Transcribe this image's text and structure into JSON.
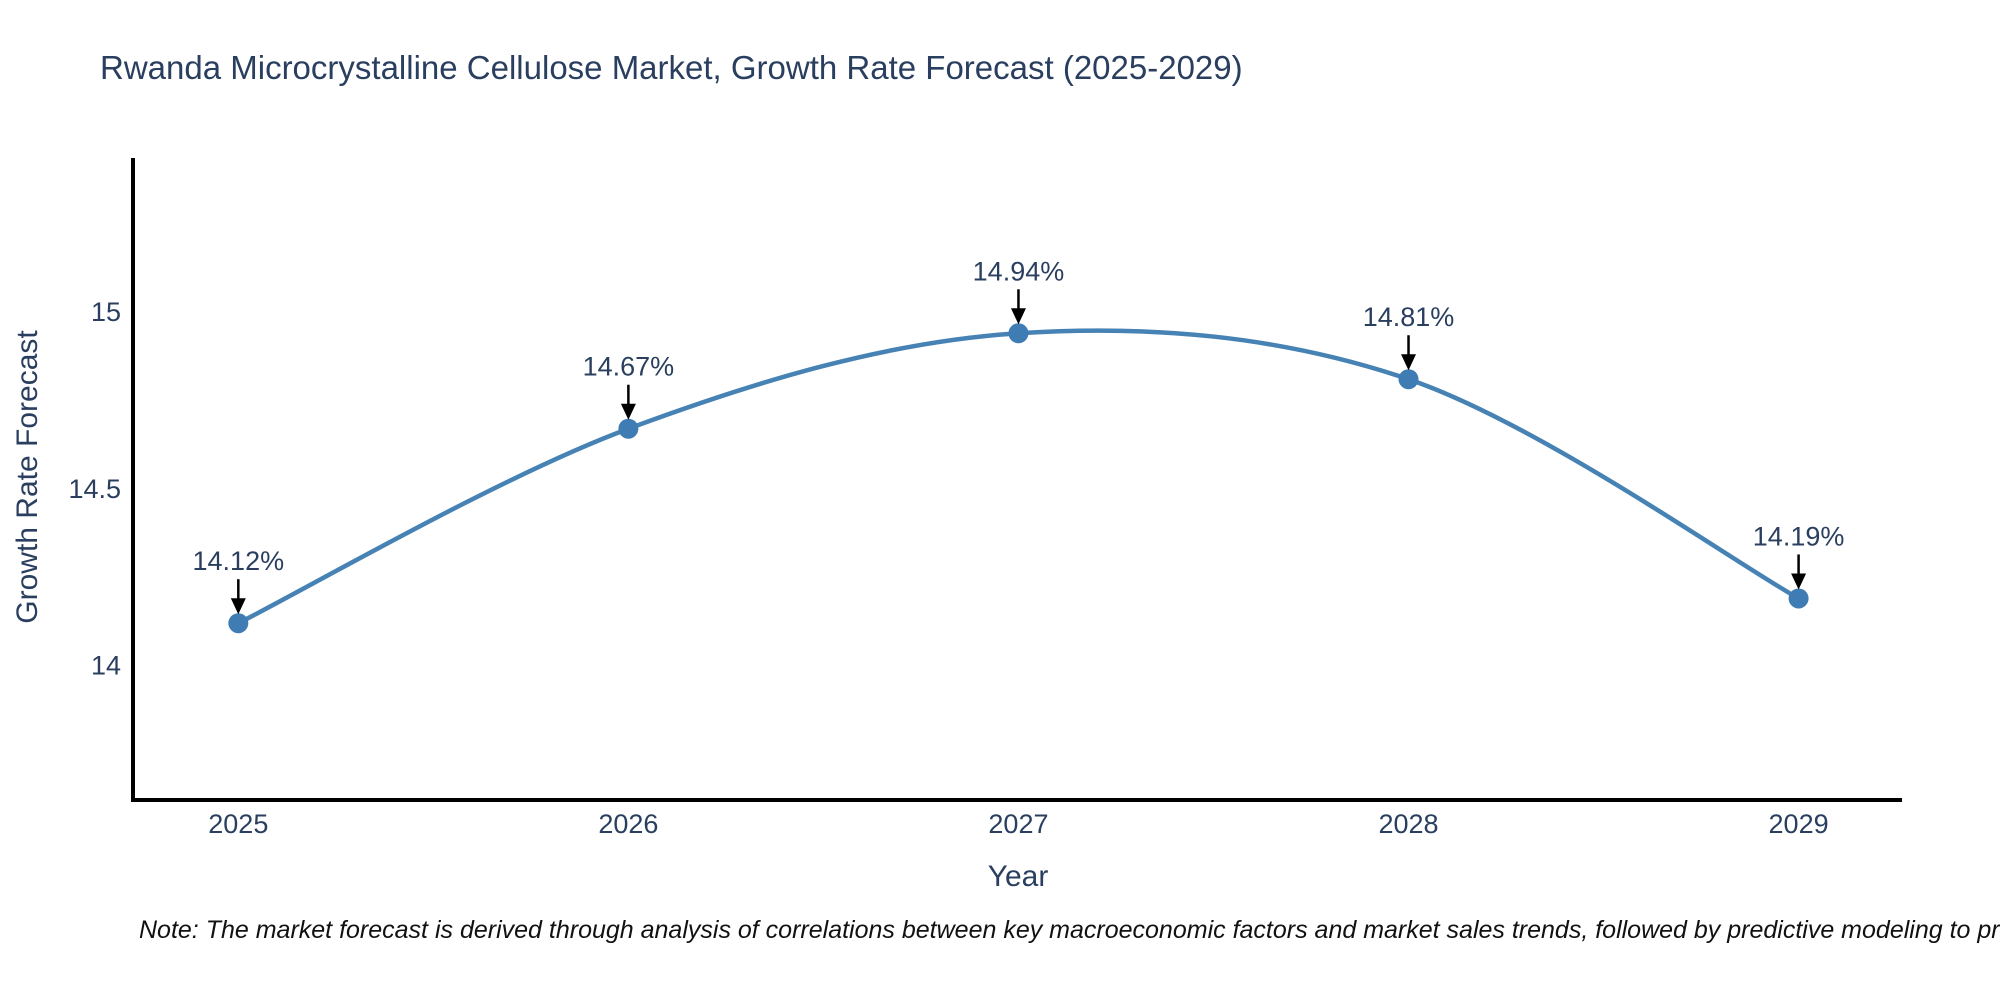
{
  "note": "Note: The market forecast is derived through analysis of correlations between key macroeconomic factors and market sales trends, followed by predictive modeling to project future sales.",
  "chart_data": {
    "type": "line",
    "title": "Rwanda Microcrystalline Cellulose Market, Growth Rate Forecast (2025-2029)",
    "xlabel": "Year",
    "ylabel": "Growth Rate Forecast",
    "x": [
      2025,
      2026,
      2027,
      2028,
      2029
    ],
    "values": [
      14.12,
      14.67,
      14.94,
      14.81,
      14.19
    ],
    "point_labels": [
      "14.12%",
      "14.67%",
      "14.94%",
      "14.81%",
      "14.19%"
    ],
    "yticks": [
      14,
      14.5,
      15
    ],
    "ytick_labels": [
      "14",
      "14.5",
      "15"
    ],
    "xlim": [
      2024.73,
      2029.26
    ],
    "ylim": [
      13.62,
      15.43
    ],
    "line_shape": "spline",
    "grid": false,
    "legend_position": "none",
    "colors": {
      "line": "#4682b4",
      "marker": "#3f7cb4",
      "text": "#2a3f5f",
      "axis": "#000000",
      "annotation_arrow": "#000000",
      "background": "#ffffff"
    }
  }
}
